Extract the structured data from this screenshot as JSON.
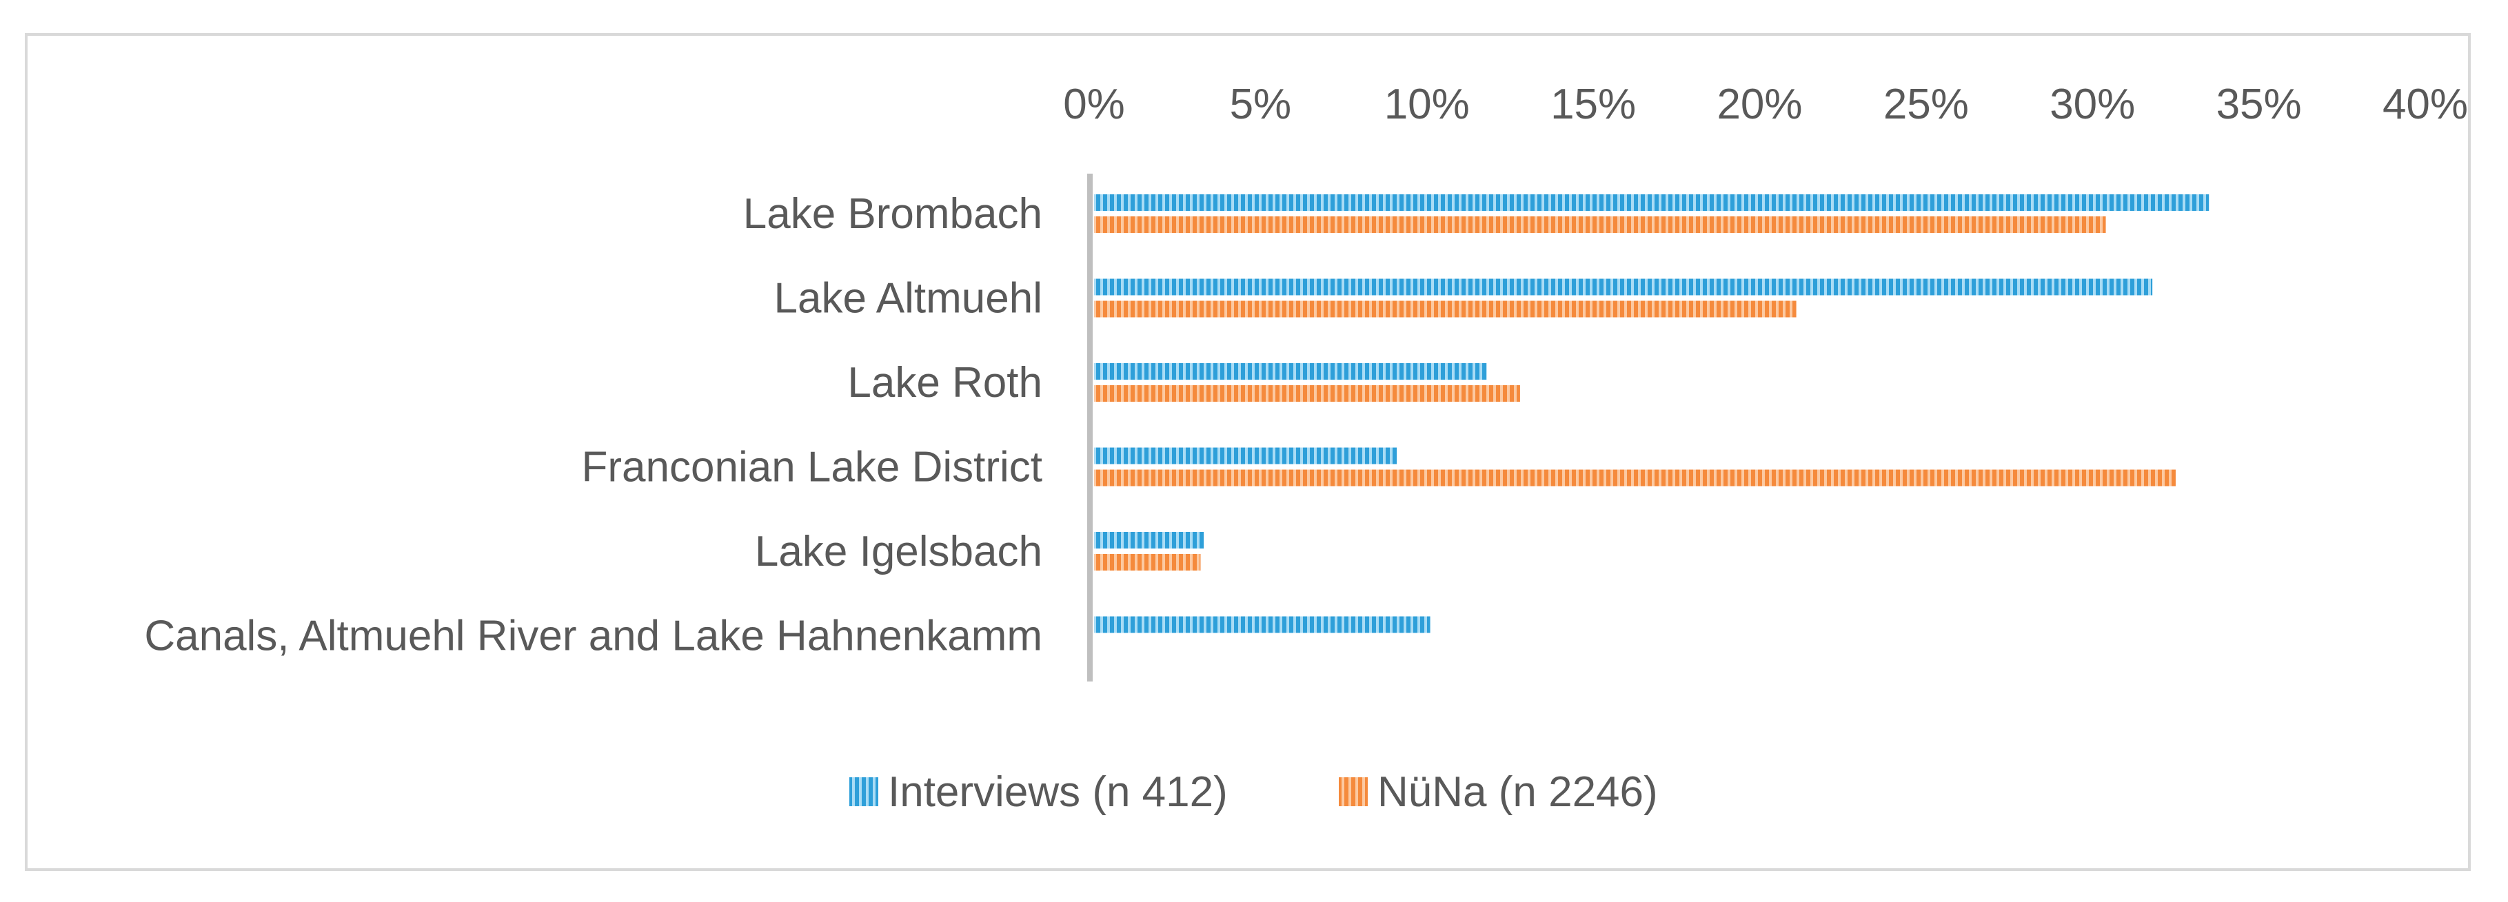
{
  "chart_data": {
    "type": "bar",
    "orientation": "horizontal",
    "categories": [
      "Lake Brombach",
      "Lake Altmuehl",
      "Lake Roth",
      "Franconian Lake District",
      "Lake Igelsbach",
      "Canals, Altmuehl River and Lake Hahnenkamm"
    ],
    "series": [
      {
        "name": "Interviews (n 412)",
        "color": "#2e9fd9",
        "values": [
          33.5,
          31.8,
          11.8,
          9.1,
          3.3,
          10.1
        ]
      },
      {
        "name": "NüNa (n 2246)",
        "color": "#f58a3c",
        "values": [
          30.4,
          21.1,
          12.8,
          32.5,
          3.2,
          0
        ]
      }
    ],
    "xlim": [
      0,
      40
    ],
    "xticks": [
      "0%",
      "5%",
      "10%",
      "15%",
      "20%",
      "25%",
      "30%",
      "35%",
      "40%"
    ],
    "x_axis_position": "top",
    "grid": false,
    "legend_position": "bottom",
    "title": "",
    "xlabel": "",
    "ylabel": ""
  }
}
